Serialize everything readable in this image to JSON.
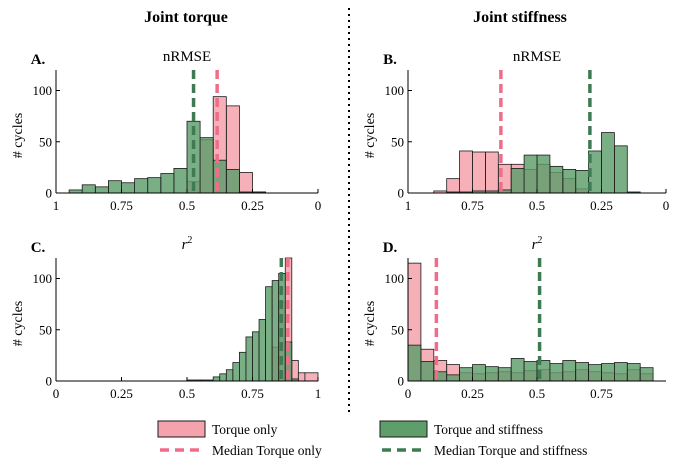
{
  "column_titles": [
    "Joint torque",
    "Joint stiffness"
  ],
  "legend": {
    "torque_only": "Torque only",
    "torque_and_stiffness": "Torque and stiffness",
    "median_torque_only": "Median Torque only",
    "median_torque_and_stiffness": "Median Torque and stiffness"
  },
  "colors": {
    "torque_only_fill": "#F4A3AC",
    "torque_only_line": "#F06D8A",
    "torque_and_stiffness_fill": "#5D9E6B",
    "torque_and_stiffness_line": "#3E7A52",
    "bar_edge": "#1a1a1a"
  },
  "chart_data": [
    {
      "type": "bar",
      "id": "A",
      "letter": "A.",
      "title": "nRMSE",
      "ylabel": "# cycles",
      "xlim": [
        0,
        1
      ],
      "x_reversed": true,
      "xticks": [
        1,
        0.75,
        0.5,
        0.25,
        0
      ],
      "xtick_labels": [
        "1",
        "0.75",
        "0.5",
        "0.25",
        "0"
      ],
      "ylim": [
        0,
        120
      ],
      "yticks": [
        0,
        50,
        100
      ],
      "bin_width": 0.05,
      "series": [
        {
          "name": "Torque only",
          "bins": [
            [
              0.2,
              0.25,
              1
            ],
            [
              0.25,
              0.3,
              20
            ],
            [
              0.3,
              0.35,
              85
            ],
            [
              0.35,
              0.4,
              94
            ],
            [
              0.4,
              0.45,
              52
            ],
            [
              0.45,
              0.5,
              11
            ]
          ],
          "median": 0.385
        },
        {
          "name": "Torque and stiffness",
          "bins": [
            [
              0.2,
              0.25,
              1
            ],
            [
              0.25,
              0.3,
              1
            ],
            [
              0.3,
              0.35,
              23
            ],
            [
              0.35,
              0.4,
              32
            ],
            [
              0.4,
              0.45,
              54
            ],
            [
              0.45,
              0.5,
              70
            ],
            [
              0.5,
              0.55,
              24
            ],
            [
              0.55,
              0.6,
              19
            ],
            [
              0.6,
              0.65,
              15
            ],
            [
              0.65,
              0.7,
              14
            ],
            [
              0.7,
              0.75,
              10
            ],
            [
              0.75,
              0.8,
              12
            ],
            [
              0.8,
              0.85,
              6
            ],
            [
              0.85,
              0.9,
              8
            ],
            [
              0.9,
              0.95,
              3
            ]
          ],
          "median": 0.475
        }
      ]
    },
    {
      "type": "bar",
      "id": "B",
      "letter": "B.",
      "title": "nRMSE",
      "ylabel": "# cycles",
      "xlim": [
        0,
        1
      ],
      "x_reversed": true,
      "xticks": [
        1,
        0.75,
        0.5,
        0.25,
        0
      ],
      "xtick_labels": [
        "1",
        "0.75",
        "0.5",
        "0.25",
        "0"
      ],
      "ylim": [
        0,
        120
      ],
      "yticks": [
        0,
        50,
        100
      ],
      "bin_width": 0.05,
      "series": [
        {
          "name": "Torque only",
          "bins": [
            [
              0.3,
              0.35,
              4
            ],
            [
              0.35,
              0.4,
              14
            ],
            [
              0.4,
              0.45,
              20
            ],
            [
              0.45,
              0.5,
              28
            ],
            [
              0.5,
              0.55,
              23
            ],
            [
              0.55,
              0.6,
              28
            ],
            [
              0.6,
              0.65,
              28
            ],
            [
              0.65,
              0.7,
              40
            ],
            [
              0.7,
              0.75,
              40
            ],
            [
              0.75,
              0.8,
              41
            ],
            [
              0.8,
              0.85,
              14
            ],
            [
              0.85,
              0.9,
              2
            ]
          ],
          "median": 0.64
        },
        {
          "name": "Torque and stiffness",
          "bins": [
            [
              0.1,
              0.15,
              1
            ],
            [
              0.15,
              0.2,
              46
            ],
            [
              0.2,
              0.25,
              59
            ],
            [
              0.25,
              0.3,
              41
            ],
            [
              0.3,
              0.35,
              22
            ],
            [
              0.35,
              0.4,
              23
            ],
            [
              0.4,
              0.45,
              26
            ],
            [
              0.45,
              0.5,
              37
            ],
            [
              0.5,
              0.55,
              37
            ],
            [
              0.55,
              0.6,
              24
            ],
            [
              0.6,
              0.65,
              3
            ],
            [
              0.65,
              0.7,
              2
            ],
            [
              0.7,
              0.75,
              2
            ],
            [
              0.75,
              0.8,
              1
            ],
            [
              0.8,
              0.85,
              1
            ]
          ],
          "median": 0.295
        }
      ]
    },
    {
      "type": "bar",
      "id": "C",
      "letter": "C.",
      "title": "r^2",
      "ylabel": "# cycles",
      "xlim": [
        0,
        1
      ],
      "x_reversed": false,
      "xticks": [
        0,
        0.25,
        0.5,
        0.75,
        1
      ],
      "xtick_labels": [
        "0",
        "0.25",
        "0.5",
        "0.75",
        "1"
      ],
      "ylim": [
        0,
        120
      ],
      "yticks": [
        0,
        50,
        100
      ],
      "bin_width": 0.025,
      "series": [
        {
          "name": "Torque only",
          "bins": [
            [
              0.825,
              0.85,
              33
            ],
            [
              0.85,
              0.875,
              77
            ],
            [
              0.875,
              0.9,
              120
            ],
            [
              0.9,
              0.925,
              20
            ],
            [
              0.925,
              0.95,
              8
            ],
            [
              0.95,
              1.0,
              8
            ]
          ],
          "median": 0.885
        },
        {
          "name": "Torque and stiffness",
          "bins": [
            [
              0.5,
              0.55,
              1
            ],
            [
              0.55,
              0.6,
              1
            ],
            [
              0.6,
              0.625,
              4
            ],
            [
              0.625,
              0.65,
              7
            ],
            [
              0.65,
              0.675,
              11
            ],
            [
              0.675,
              0.7,
              18
            ],
            [
              0.7,
              0.725,
              28
            ],
            [
              0.725,
              0.75,
              43
            ],
            [
              0.75,
              0.775,
              48
            ],
            [
              0.775,
              0.8,
              60
            ],
            [
              0.8,
              0.825,
              92
            ],
            [
              0.825,
              0.85,
              98
            ],
            [
              0.85,
              0.875,
              105
            ],
            [
              0.875,
              0.9,
              38
            ],
            [
              0.9,
              0.925,
              2
            ]
          ],
          "median": 0.86
        }
      ]
    },
    {
      "type": "bar",
      "id": "D",
      "letter": "D.",
      "title": "r^2",
      "ylabel": "# cycles",
      "xlim": [
        0,
        1
      ],
      "x_reversed": false,
      "xticks": [
        0,
        0.25,
        0.5,
        0.75
      ],
      "xtick_labels": [
        "0",
        "0.25",
        "0.5",
        "0.75"
      ],
      "ylim": [
        0,
        120
      ],
      "yticks": [
        0,
        50,
        100
      ],
      "bin_width": 0.05,
      "series": [
        {
          "name": "Torque only",
          "bins": [
            [
              0.0,
              0.05,
              115
            ],
            [
              0.05,
              0.1,
              31
            ],
            [
              0.1,
              0.15,
              20
            ],
            [
              0.15,
              0.2,
              16
            ],
            [
              0.2,
              0.25,
              8
            ],
            [
              0.25,
              0.3,
              7
            ],
            [
              0.3,
              0.35,
              8
            ],
            [
              0.35,
              0.4,
              9
            ],
            [
              0.4,
              0.45,
              8
            ],
            [
              0.45,
              0.5,
              10
            ],
            [
              0.5,
              0.55,
              11
            ],
            [
              0.55,
              0.6,
              8
            ],
            [
              0.6,
              0.65,
              9
            ],
            [
              0.65,
              0.7,
              11
            ],
            [
              0.7,
              0.75,
              9
            ],
            [
              0.75,
              0.8,
              8
            ],
            [
              0.8,
              0.85,
              7
            ],
            [
              0.85,
              0.9,
              11
            ],
            [
              0.9,
              0.95,
              7
            ]
          ],
          "median": 0.11
        },
        {
          "name": "Torque and stiffness",
          "bins": [
            [
              0.0,
              0.05,
              35
            ],
            [
              0.05,
              0.1,
              19
            ],
            [
              0.1,
              0.15,
              9
            ],
            [
              0.15,
              0.2,
              6
            ],
            [
              0.2,
              0.25,
              13
            ],
            [
              0.25,
              0.3,
              16
            ],
            [
              0.3,
              0.35,
              14
            ],
            [
              0.35,
              0.4,
              13
            ],
            [
              0.4,
              0.45,
              22
            ],
            [
              0.45,
              0.5,
              19
            ],
            [
              0.5,
              0.55,
              20
            ],
            [
              0.55,
              0.6,
              17
            ],
            [
              0.6,
              0.65,
              20
            ],
            [
              0.65,
              0.7,
              18
            ],
            [
              0.7,
              0.75,
              16
            ],
            [
              0.75,
              0.8,
              17
            ],
            [
              0.8,
              0.85,
              18
            ],
            [
              0.85,
              0.9,
              17
            ],
            [
              0.9,
              0.95,
              13
            ]
          ],
          "median": 0.51
        }
      ]
    }
  ]
}
